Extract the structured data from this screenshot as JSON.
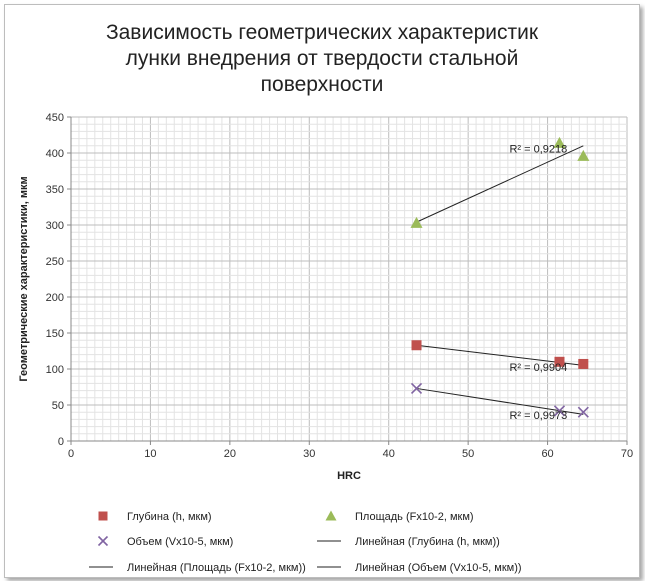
{
  "chart_data": {
    "type": "scatter",
    "title_lines": [
      "Зависимость геометрических характеристик",
      "лунки внедрения от твердости стальной",
      "поверхности"
    ],
    "xlabel": "HRC",
    "ylabel": "Геометрические характеристики, мкм",
    "xlim": [
      0,
      70
    ],
    "ylim": [
      0,
      450
    ],
    "x_ticks": [
      0,
      10,
      20,
      30,
      40,
      50,
      60,
      70
    ],
    "y_ticks": [
      0,
      50,
      100,
      150,
      200,
      250,
      300,
      350,
      400,
      450
    ],
    "grid": true,
    "legend_position": "bottom",
    "series": [
      {
        "name": "Глубина (h, мкм)",
        "marker": "square",
        "color": "#c0504d",
        "x": [
          43.5,
          61.5,
          64.5
        ],
        "y": [
          133,
          110,
          107
        ]
      },
      {
        "name": "Площадь (Fx10-2, мкм)",
        "marker": "triangle",
        "color": "#9bbb59",
        "x": [
          43.5,
          61.5,
          64.5
        ],
        "y": [
          303,
          414,
          396
        ]
      },
      {
        "name": "Объем (Vx10-5, мкм)",
        "marker": "x",
        "color": "#8064a2",
        "x": [
          43.5,
          61.5,
          64.5
        ],
        "y": [
          73,
          42,
          40
        ]
      }
    ],
    "trendlines": [
      {
        "name": "Линейная (Глубина (h, мкм))",
        "x": [
          43.5,
          64.5
        ],
        "y": [
          133,
          105
        ],
        "r2": "R² = 0,9904"
      },
      {
        "name": "Линейная (Площадь (Fx10-2, мкм))",
        "x": [
          43.5,
          64.5
        ],
        "y": [
          304,
          410
        ],
        "r2": "R² = 0,9218"
      },
      {
        "name": "Линейная (Объем (Vx10-5, мкм))",
        "x": [
          43.5,
          64.5
        ],
        "y": [
          73,
          37
        ],
        "r2": "R² = 0,9973"
      }
    ],
    "r2_label_positions_data": [
      {
        "x": 55.2,
        "y": 103
      },
      {
        "x": 55.2,
        "y": 406
      },
      {
        "x": 55.2,
        "y": 36
      }
    ]
  }
}
